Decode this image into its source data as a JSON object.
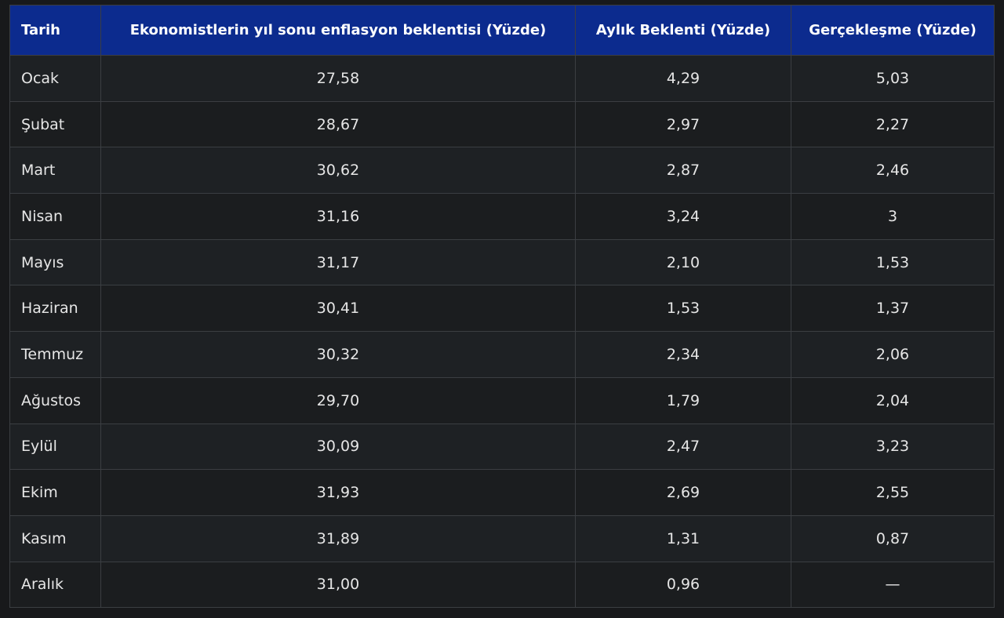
{
  "table": {
    "headers": [
      "Tarih",
      "Ekonomistlerin yıl sonu enflasyon beklentisi (Yüzde)",
      "Aylık Beklenti (Yüzde)",
      "Gerçekleşme (Yüzde)"
    ],
    "rows": [
      [
        "Ocak",
        "27,58",
        "4,29",
        "5,03"
      ],
      [
        "Şubat",
        "28,67",
        "2,97",
        "2,27"
      ],
      [
        "Mart",
        "30,62",
        "2,87",
        "2,46"
      ],
      [
        "Nisan",
        "31,16",
        "3,24",
        "3"
      ],
      [
        "Mayıs",
        "31,17",
        "2,10",
        "1,53"
      ],
      [
        "Haziran",
        "30,41",
        "1,53",
        "1,37"
      ],
      [
        "Temmuz",
        "30,32",
        "2,34",
        "2,06"
      ],
      [
        "Ağustos",
        "29,70",
        "1,79",
        "2,04"
      ],
      [
        "Eylül",
        "30,09",
        "2,47",
        "3,23"
      ],
      [
        "Ekim",
        "31,93",
        "2,69",
        "2,55"
      ],
      [
        "Kasım",
        "31,89",
        "1,31",
        "0,87"
      ],
      [
        "Aralık",
        "31,00",
        "0,96",
        "—"
      ]
    ]
  }
}
